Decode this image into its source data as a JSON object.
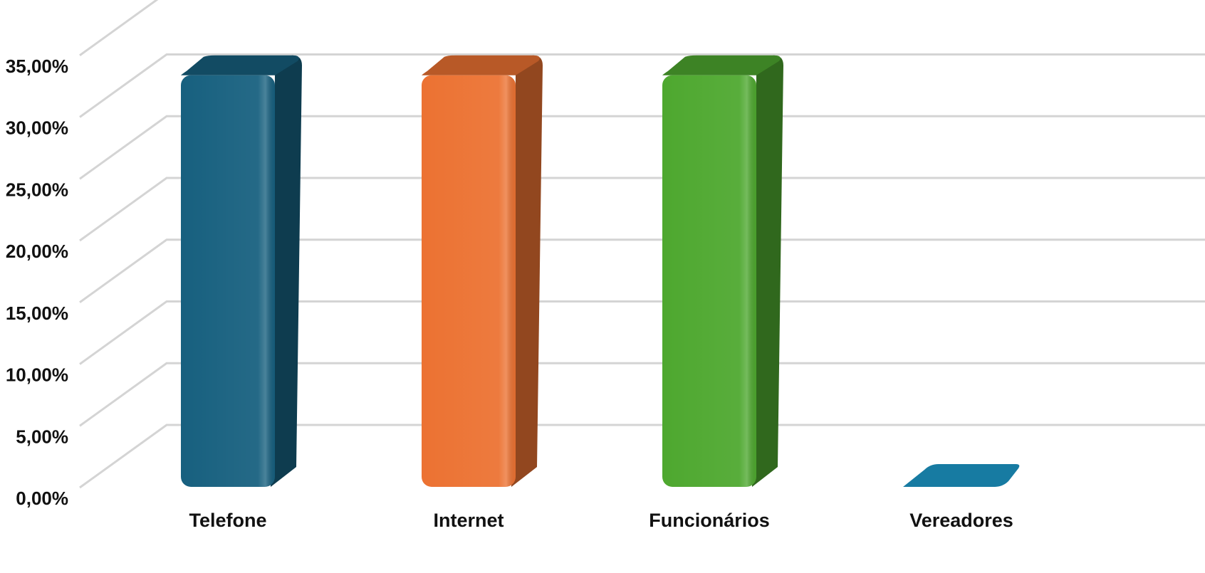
{
  "chart_data": {
    "type": "bar",
    "style": "3d-column",
    "categories": [
      "Telefone",
      "Internet",
      "Funcionários",
      "Vereadores"
    ],
    "values": [
      33.33,
      33.33,
      33.33,
      0
    ],
    "ylim": [
      0,
      40
    ],
    "y_ticks": [
      0,
      5,
      10,
      15,
      20,
      25,
      30,
      35
    ],
    "y_tick_labels": [
      "0,00%",
      "5,00%",
      "10,00%",
      "15,00%",
      "20,00%",
      "25,00%",
      "30,00%",
      "35,00%"
    ],
    "grid": true,
    "legend": "none",
    "colors": [
      "#17607f",
      "#ec7232",
      "#4ea82f",
      "#177ba2"
    ],
    "title": "",
    "xlabel": "",
    "ylabel": ""
  }
}
